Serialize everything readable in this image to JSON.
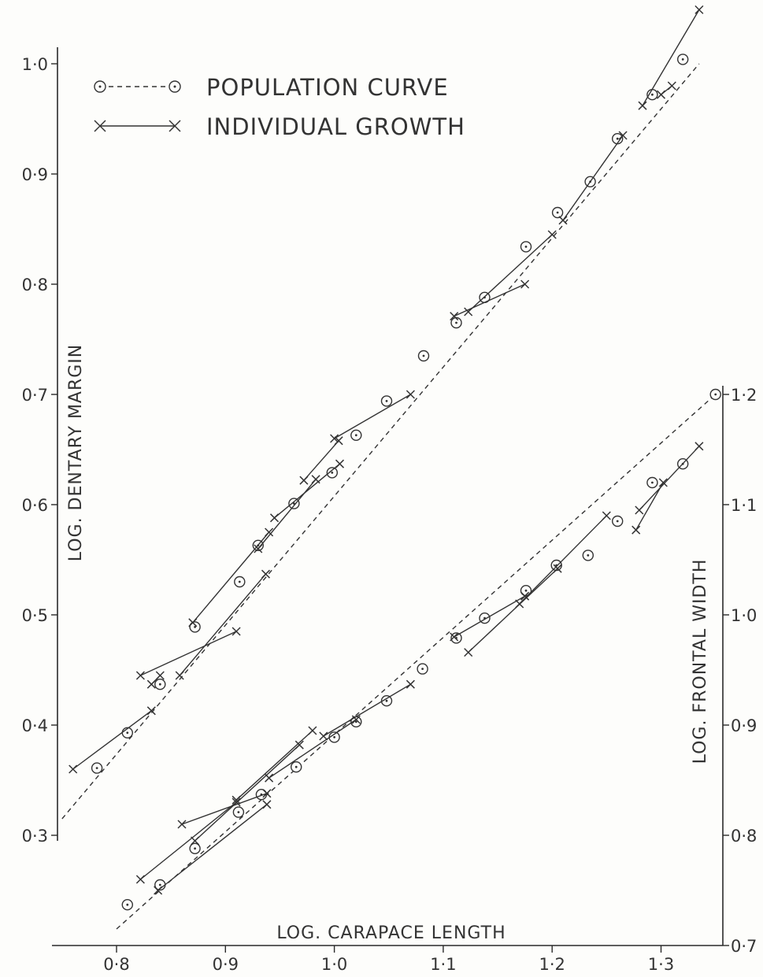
{
  "chart_data": {
    "type": "scatter",
    "legend": {
      "placement": "top-left",
      "population_label": "POPULATION CURVE",
      "individual_label": "INDIVIDUAL GROWTH"
    },
    "x_axis": {
      "label": "LOG. CARAPACE LENGTH",
      "ticks": [
        {
          "v": 0.8,
          "t": "0·8"
        },
        {
          "v": 0.9,
          "t": "0·9"
        },
        {
          "v": 1.0,
          "t": "1·0"
        },
        {
          "v": 1.1,
          "t": "1·1"
        },
        {
          "v": 1.2,
          "t": "1·2"
        },
        {
          "v": 1.3,
          "t": "1·3"
        }
      ],
      "range": [
        0.75,
        1.36
      ]
    },
    "y_left": {
      "label": "LOG. DENTARY MARGIN",
      "ticks": [
        {
          "v": 0.3,
          "t": "0·3"
        },
        {
          "v": 0.4,
          "t": "0·4"
        },
        {
          "v": 0.5,
          "t": "0·5"
        },
        {
          "v": 0.6,
          "t": "0·6"
        },
        {
          "v": 0.7,
          "t": "0·7"
        },
        {
          "v": 0.8,
          "t": "0·8"
        },
        {
          "v": 0.9,
          "t": "0·9"
        },
        {
          "v": 1.0,
          "t": "1·0"
        }
      ],
      "range": [
        0.3,
        1.0
      ]
    },
    "y_right": {
      "label": "LOG. FRONTAL WIDTH",
      "ticks": [
        {
          "v": 0.7,
          "t": "0·7"
        },
        {
          "v": 0.8,
          "t": "0·8"
        },
        {
          "v": 0.9,
          "t": "0·9"
        },
        {
          "v": 1.0,
          "t": "1·0"
        },
        {
          "v": 1.1,
          "t": "1·1"
        },
        {
          "v": 1.2,
          "t": "1·2"
        }
      ],
      "range": [
        0.7,
        1.2
      ]
    },
    "series": [
      {
        "name": "POPULATION CURVE",
        "axis": "left",
        "role": "population",
        "line": [
          [
            0.75,
            0.315
          ],
          [
            1.335,
            1.0
          ]
        ],
        "points": [
          [
            0.782,
            0.361
          ],
          [
            0.81,
            0.393
          ],
          [
            0.84,
            0.437
          ],
          [
            0.872,
            0.489
          ],
          [
            0.913,
            0.53
          ],
          [
            0.93,
            0.563
          ],
          [
            0.963,
            0.601
          ],
          [
            0.998,
            0.629
          ],
          [
            1.02,
            0.663
          ],
          [
            1.048,
            0.694
          ],
          [
            1.082,
            0.735
          ],
          [
            1.112,
            0.765
          ],
          [
            1.138,
            0.788
          ],
          [
            1.176,
            0.834
          ],
          [
            1.205,
            0.865
          ],
          [
            1.235,
            0.893
          ],
          [
            1.26,
            0.932
          ],
          [
            1.292,
            0.972
          ],
          [
            1.32,
            1.004
          ]
        ]
      },
      {
        "name": "INDIVIDUAL GROWTH",
        "axis": "left",
        "role": "individual",
        "segments": [
          [
            [
              0.76,
              0.36
            ],
            [
              0.832,
              0.413
            ]
          ],
          [
            [
              0.822,
              0.445
            ],
            [
              0.91,
              0.485
            ]
          ],
          [
            [
              0.87,
              0.493
            ],
            [
              0.94,
              0.575
            ]
          ],
          [
            [
              0.858,
              0.445
            ],
            [
              0.937,
              0.537
            ]
          ],
          [
            [
              0.93,
              0.56
            ],
            [
              0.983,
              0.623
            ]
          ],
          [
            [
              0.945,
              0.588
            ],
            [
              1.005,
              0.637
            ]
          ],
          [
            [
              0.972,
              0.622
            ],
            [
              1.004,
              0.658
            ]
          ],
          [
            [
              1.0,
              0.66
            ],
            [
              1.07,
              0.7
            ]
          ],
          [
            [
              1.11,
              0.771
            ],
            [
              1.175,
              0.8
            ]
          ],
          [
            [
              1.123,
              0.775
            ],
            [
              1.2,
              0.845
            ]
          ],
          [
            [
              1.21,
              0.858
            ],
            [
              1.265,
              0.935
            ]
          ],
          [
            [
              1.283,
              0.962
            ],
            [
              1.335,
              1.049
            ]
          ],
          [
            [
              0.832,
              0.437
            ],
            [
              0.84,
              0.445
            ]
          ],
          [
            [
              1.3,
              0.972
            ],
            [
              1.31,
              0.98
            ]
          ]
        ]
      },
      {
        "name": "POPULATION CURVE",
        "axis": "right",
        "role": "population",
        "line": [
          [
            0.8,
            0.715
          ],
          [
            1.35,
            1.2
          ]
        ],
        "points": [
          [
            0.81,
            0.737
          ],
          [
            0.84,
            0.755
          ],
          [
            0.872,
            0.788
          ],
          [
            0.912,
            0.821
          ],
          [
            0.933,
            0.837
          ],
          [
            0.965,
            0.862
          ],
          [
            1.0,
            0.889
          ],
          [
            1.02,
            0.903
          ],
          [
            1.048,
            0.922
          ],
          [
            1.081,
            0.951
          ],
          [
            1.112,
            0.979
          ],
          [
            1.138,
            0.997
          ],
          [
            1.176,
            1.022
          ],
          [
            1.204,
            1.045
          ],
          [
            1.233,
            1.054
          ],
          [
            1.26,
            1.085
          ],
          [
            1.292,
            1.12
          ],
          [
            1.32,
            1.137
          ],
          [
            1.35,
            1.2
          ]
        ]
      },
      {
        "name": "INDIVIDUAL GROWTH",
        "axis": "right",
        "role": "individual",
        "segments": [
          [
            [
              0.822,
              0.76
            ],
            [
              0.91,
              0.83
            ]
          ],
          [
            [
              0.838,
              0.75
            ],
            [
              0.938,
              0.828
            ]
          ],
          [
            [
              0.86,
              0.81
            ],
            [
              0.938,
              0.838
            ]
          ],
          [
            [
              0.872,
              0.795
            ],
            [
              0.968,
              0.882
            ]
          ],
          [
            [
              0.91,
              0.832
            ],
            [
              0.98,
              0.895
            ]
          ],
          [
            [
              0.94,
              0.852
            ],
            [
              1.02,
              0.905
            ]
          ],
          [
            [
              0.99,
              0.89
            ],
            [
              1.07,
              0.937
            ]
          ],
          [
            [
              1.11,
              0.98
            ],
            [
              1.175,
              1.017
            ]
          ],
          [
            [
              1.123,
              0.966
            ],
            [
              1.205,
              1.042
            ]
          ],
          [
            [
              1.17,
              1.01
            ],
            [
              1.25,
              1.09
            ]
          ],
          [
            [
              1.277,
              1.077
            ],
            [
              1.302,
              1.12
            ]
          ],
          [
            [
              1.28,
              1.095
            ],
            [
              1.335,
              1.153
            ]
          ]
        ]
      }
    ]
  }
}
